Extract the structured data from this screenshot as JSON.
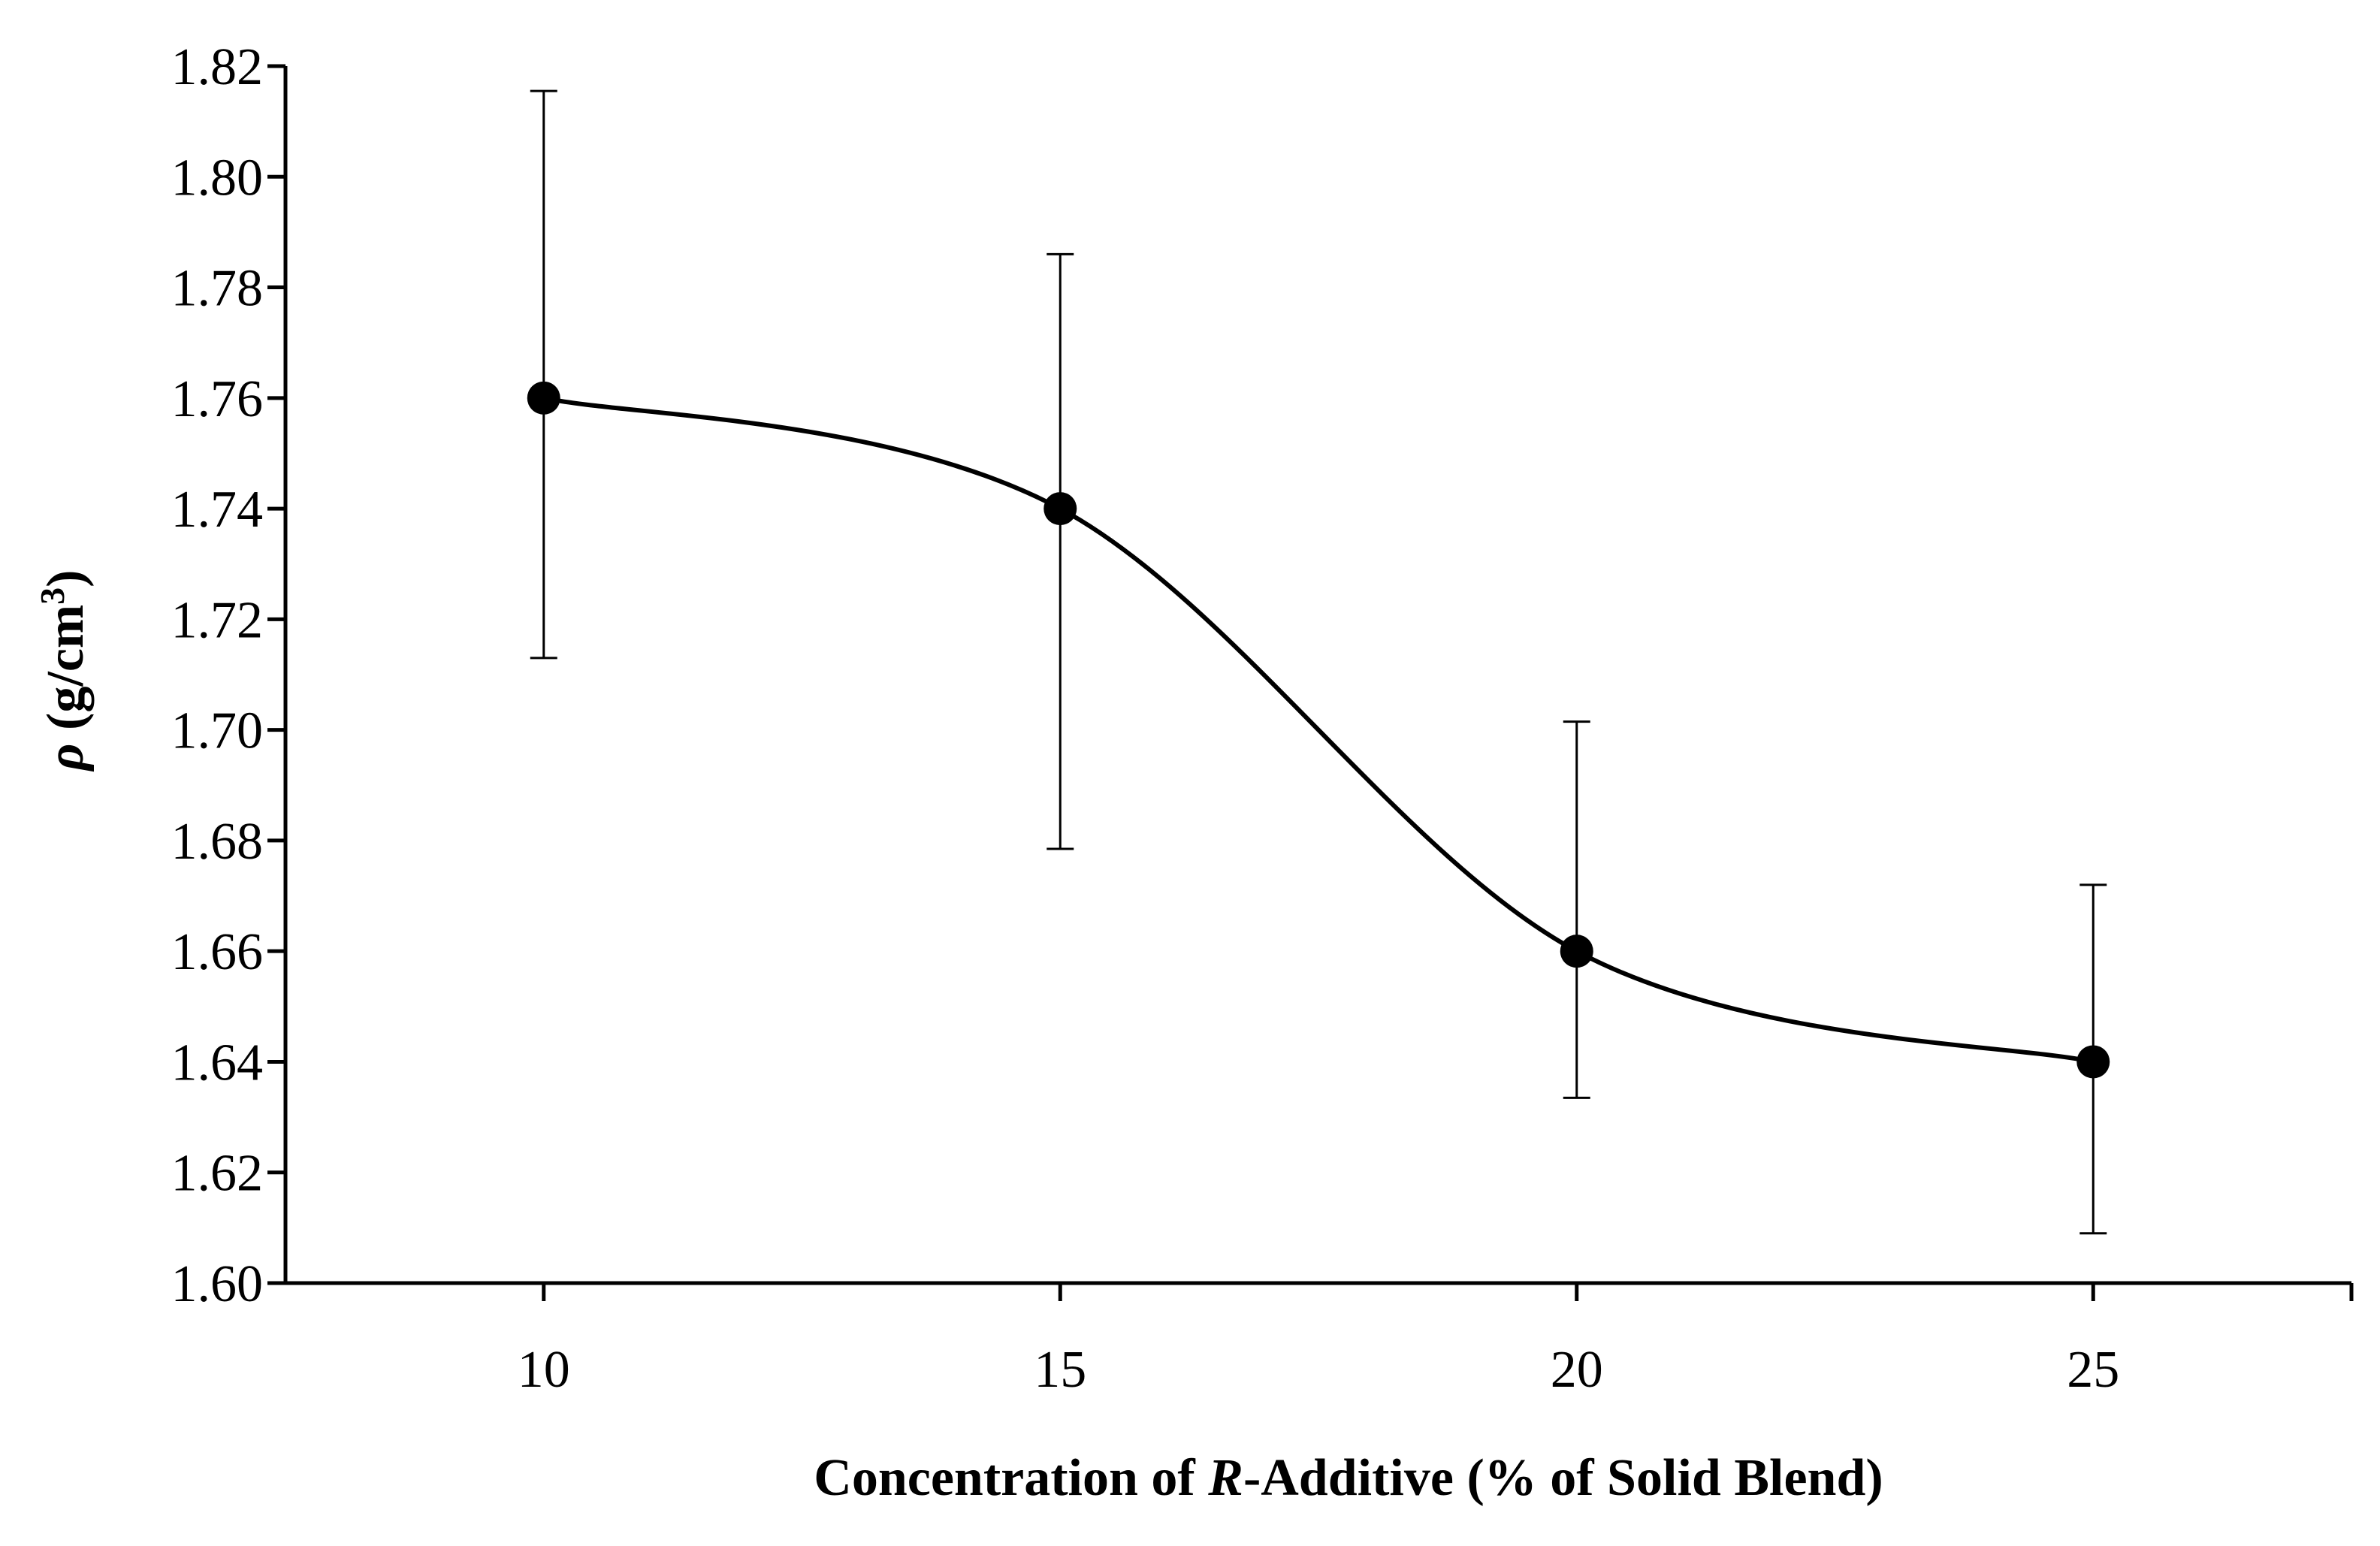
{
  "chart_data": {
    "type": "line",
    "title": "",
    "xlabel": {
      "prefix": "Concentration of ",
      "italic": "R",
      "suffix": "-Additive (% of Solid Blend)"
    },
    "ylabel": {
      "symbol": "ρ",
      "text": " (g/cm",
      "superscript": "3",
      "close": ")"
    },
    "x": [
      10,
      15,
      20,
      25
    ],
    "y": [
      1.76,
      1.74,
      1.66,
      1.64
    ],
    "error_upper": [
      1.8155,
      1.786,
      1.7015,
      1.672
    ],
    "error_lower": [
      1.713,
      1.6785,
      1.6335,
      1.609
    ],
    "xlim": [
      7.5,
      27.5
    ],
    "ylim": [
      1.6,
      1.82
    ],
    "x_ticks": [
      10,
      15,
      20,
      25
    ],
    "x_tick_labels": [
      "10",
      "15",
      "20",
      "25"
    ],
    "y_ticks": [
      1.6,
      1.62,
      1.64,
      1.66,
      1.68,
      1.7,
      1.72,
      1.74,
      1.76,
      1.78,
      1.8,
      1.82
    ],
    "y_tick_labels": [
      "1.60",
      "1.62",
      "1.64",
      "1.66",
      "1.68",
      "1.70",
      "1.72",
      "1.74",
      "1.76",
      "1.78",
      "1.80",
      "1.82"
    ],
    "smooth_line": true,
    "markers": "filled-circle",
    "grid": false,
    "legend": "none",
    "colors": {
      "line": "#000000",
      "marker": "#000000",
      "axis": "#000000"
    }
  }
}
